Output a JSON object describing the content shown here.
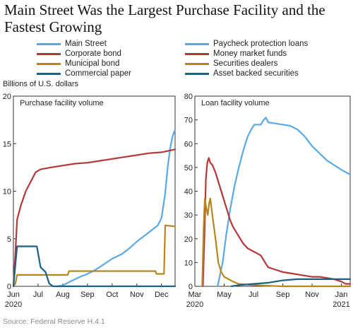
{
  "title": "Main Street Was the Largest Purchase Facility and the Fastest Growing",
  "units": "Billions of U.S. dollars",
  "source": "Source: Federal Reserve H.4.1",
  "colors": {
    "light_blue": "#5aa9e6",
    "red": "#b5373a",
    "gold": "#b8861d",
    "dark_teal": "#1a6285"
  },
  "legends": {
    "left": [
      {
        "label": "Main Street",
        "color": "#5aa9e6"
      },
      {
        "label": "Corporate bond",
        "color": "#b5373a"
      },
      {
        "label": "Municipal bond",
        "color": "#b8861d"
      },
      {
        "label": "Commercial paper",
        "color": "#1a6285"
      }
    ],
    "right": [
      {
        "label": "Paycheck protection loans",
        "color": "#5aa9e6"
      },
      {
        "label": "Money market funds",
        "color": "#b5373a"
      },
      {
        "label": "Securities dealers",
        "color": "#b8861d"
      },
      {
        "label": "Asset backed securities",
        "color": "#1a6285"
      }
    ]
  },
  "chart_data": [
    {
      "type": "line",
      "title": "Purchase facility volume",
      "x_ticks": [
        {
          "t": 0,
          "label": "Jun",
          "sub": "2020"
        },
        {
          "t": 1,
          "label": "Jul"
        },
        {
          "t": 2,
          "label": "Aug"
        },
        {
          "t": 3,
          "label": "Sep"
        },
        {
          "t": 4,
          "label": "Oct"
        },
        {
          "t": 5,
          "label": "Nov"
        },
        {
          "t": 6,
          "label": "Dec"
        }
      ],
      "xlim": [
        0,
        6.55
      ],
      "ylim": [
        0,
        20
      ],
      "y_ticks": [
        0,
        5,
        10,
        15,
        20
      ],
      "series": [
        {
          "name": "Main Street",
          "color": "#5aa9e6",
          "points": [
            [
              1.8,
              0
            ],
            [
              2.0,
              0.1
            ],
            [
              2.3,
              0.5
            ],
            [
              2.7,
              1
            ],
            [
              3.0,
              1.3
            ],
            [
              3.3,
              1.7
            ],
            [
              3.6,
              2.2
            ],
            [
              4.0,
              2.9
            ],
            [
              4.4,
              3.4
            ],
            [
              4.7,
              4.0
            ],
            [
              5.0,
              4.7
            ],
            [
              5.3,
              5.3
            ],
            [
              5.6,
              5.9
            ],
            [
              5.85,
              6.4
            ],
            [
              6.0,
              7.2
            ],
            [
              6.15,
              9.8
            ],
            [
              6.25,
              12.5
            ],
            [
              6.35,
              14.5
            ],
            [
              6.45,
              15.8
            ],
            [
              6.55,
              16.5
            ]
          ]
        },
        {
          "name": "Corporate bond",
          "color": "#b5373a",
          "points": [
            [
              0,
              0
            ],
            [
              0.08,
              3.5
            ],
            [
              0.15,
              7
            ],
            [
              0.3,
              8.5
            ],
            [
              0.5,
              10
            ],
            [
              0.7,
              11
            ],
            [
              0.9,
              12
            ],
            [
              1.1,
              12.3
            ],
            [
              1.5,
              12.5
            ],
            [
              2.0,
              12.7
            ],
            [
              2.5,
              12.9
            ],
            [
              3.0,
              13.0
            ],
            [
              3.5,
              13.2
            ],
            [
              4.0,
              13.4
            ],
            [
              4.5,
              13.6
            ],
            [
              5.0,
              13.8
            ],
            [
              5.5,
              14.0
            ],
            [
              6.0,
              14.1
            ],
            [
              6.55,
              14.4
            ]
          ]
        },
        {
          "name": "Municipal bond",
          "color": "#b8861d",
          "points": [
            [
              0,
              0
            ],
            [
              0.08,
              0.3
            ],
            [
              0.15,
              1.2
            ],
            [
              1.0,
              1.2
            ],
            [
              2.2,
              1.2
            ],
            [
              2.25,
              1.6
            ],
            [
              5.75,
              1.6
            ],
            [
              5.8,
              1.3
            ],
            [
              6.1,
              1.3
            ],
            [
              6.15,
              6.4
            ],
            [
              6.55,
              6.3
            ]
          ]
        },
        {
          "name": "Commercial paper",
          "color": "#1a6285",
          "points": [
            [
              0,
              0
            ],
            [
              0.15,
              4.2
            ],
            [
              0.95,
              4.2
            ],
            [
              1.1,
              2.0
            ],
            [
              1.3,
              1.5
            ],
            [
              1.45,
              0.3
            ],
            [
              1.6,
              0
            ],
            [
              6.55,
              0
            ]
          ]
        }
      ]
    },
    {
      "type": "line",
      "title": "Loan facility volume",
      "x_ticks": [
        {
          "t": 0,
          "label": "Mar",
          "sub": "2020"
        },
        {
          "t": 2,
          "label": "May"
        },
        {
          "t": 4,
          "label": "Jul"
        },
        {
          "t": 6,
          "label": "Sep"
        },
        {
          "t": 8,
          "label": "Nov"
        },
        {
          "t": 10,
          "label": "Jan",
          "sub": "2021"
        }
      ],
      "xlim": [
        0,
        10.6
      ],
      "ylim": [
        0,
        80
      ],
      "y_ticks": [
        0,
        10,
        20,
        30,
        40,
        50,
        60,
        70,
        80
      ],
      "series": [
        {
          "name": "Paycheck protection loans",
          "color": "#5aa9e6",
          "points": [
            [
              1.55,
              0
            ],
            [
              1.9,
              10
            ],
            [
              2.0,
              15
            ],
            [
              2.15,
              22
            ],
            [
              2.4,
              32
            ],
            [
              2.7,
              42
            ],
            [
              3.0,
              50
            ],
            [
              3.3,
              57
            ],
            [
              3.6,
              63
            ],
            [
              3.85,
              66
            ],
            [
              4.05,
              68
            ],
            [
              4.5,
              68
            ],
            [
              4.7,
              70
            ],
            [
              4.85,
              71
            ],
            [
              5.0,
              69
            ],
            [
              5.5,
              68.5
            ],
            [
              6.0,
              68
            ],
            [
              6.5,
              67.5
            ],
            [
              7.0,
              66
            ],
            [
              7.5,
              63
            ],
            [
              8.0,
              59
            ],
            [
              8.5,
              56
            ],
            [
              9.0,
              53
            ],
            [
              9.5,
              51
            ],
            [
              10.0,
              49
            ],
            [
              10.3,
              48
            ],
            [
              10.6,
              47
            ]
          ]
        },
        {
          "name": "Money market funds",
          "color": "#b5373a",
          "points": [
            [
              0.55,
              0
            ],
            [
              0.65,
              20
            ],
            [
              0.75,
              45
            ],
            [
              0.85,
              52
            ],
            [
              0.95,
              54
            ],
            [
              1.05,
              52
            ],
            [
              1.2,
              51
            ],
            [
              1.4,
              48
            ],
            [
              1.6,
              44
            ],
            [
              1.8,
              40
            ],
            [
              2.0,
              36
            ],
            [
              2.2,
              32
            ],
            [
              2.4,
              28
            ],
            [
              2.6,
              25
            ],
            [
              2.8,
              23
            ],
            [
              3.0,
              21
            ],
            [
              3.3,
              18
            ],
            [
              3.6,
              16
            ],
            [
              3.9,
              15
            ],
            [
              4.2,
              14
            ],
            [
              4.5,
              13
            ],
            [
              4.8,
              10
            ],
            [
              5.0,
              8
            ],
            [
              5.5,
              7
            ],
            [
              6.0,
              6
            ],
            [
              6.5,
              5.5
            ],
            [
              7.0,
              5
            ],
            [
              7.5,
              4.5
            ],
            [
              8.0,
              4
            ],
            [
              8.5,
              4
            ],
            [
              9.0,
              3.5
            ],
            [
              9.5,
              3
            ],
            [
              10.0,
              2
            ],
            [
              10.3,
              1
            ],
            [
              10.6,
              1
            ]
          ]
        },
        {
          "name": "Securities dealers",
          "color": "#b8861d",
          "points": [
            [
              0.5,
              0
            ],
            [
              0.6,
              25
            ],
            [
              0.68,
              37
            ],
            [
              0.78,
              33
            ],
            [
              0.88,
              30
            ],
            [
              0.98,
              35
            ],
            [
              1.05,
              37
            ],
            [
              1.15,
              32
            ],
            [
              1.3,
              25
            ],
            [
              1.45,
              18
            ],
            [
              1.6,
              10
            ],
            [
              1.8,
              6
            ],
            [
              2.0,
              4
            ],
            [
              2.3,
              3
            ],
            [
              2.6,
              2
            ],
            [
              3.0,
              1
            ],
            [
              4.0,
              0.5
            ],
            [
              6.0,
              0
            ],
            [
              10.6,
              0
            ]
          ]
        },
        {
          "name": "Asset backed securities",
          "color": "#1a6285",
          "points": [
            [
              2.5,
              0
            ],
            [
              3.0,
              0.5
            ],
            [
              4.0,
              1
            ],
            [
              5.0,
              1.5
            ],
            [
              5.5,
              2
            ],
            [
              6.0,
              2.5
            ],
            [
              7.0,
              3
            ],
            [
              8.0,
              3
            ],
            [
              9.0,
              3
            ],
            [
              10.0,
              3
            ],
            [
              10.6,
              3
            ]
          ]
        }
      ]
    }
  ]
}
